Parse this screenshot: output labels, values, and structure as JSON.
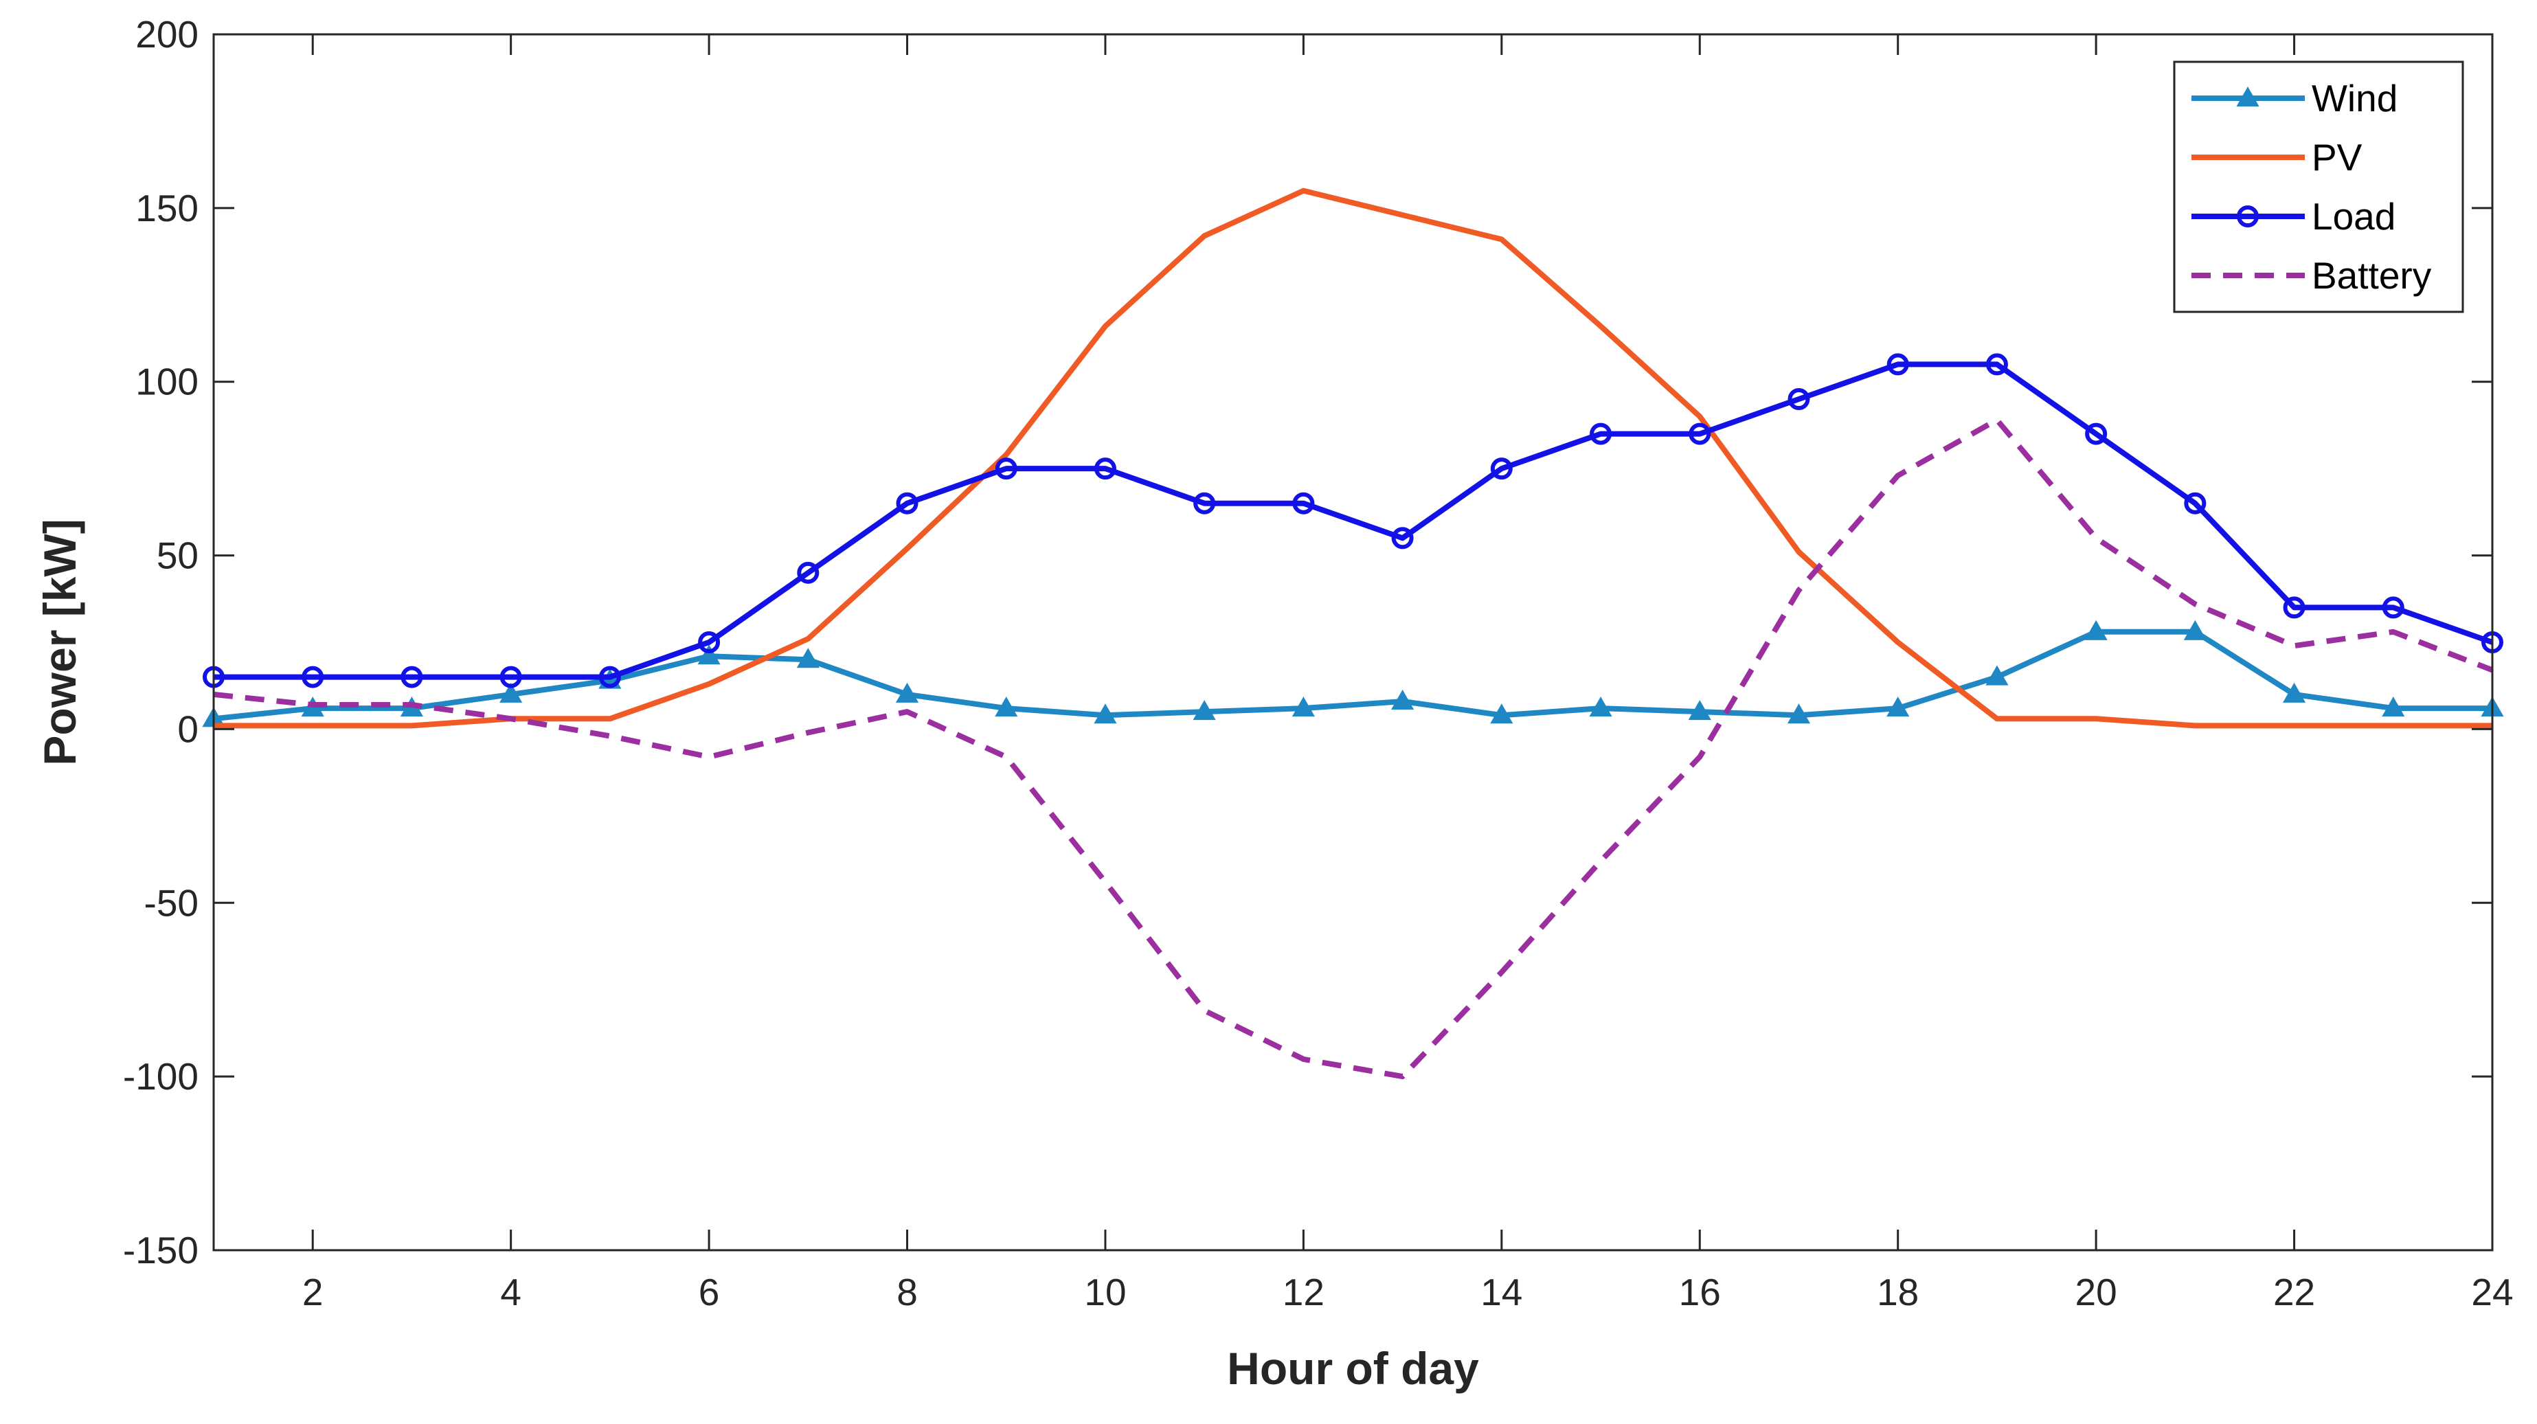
{
  "chart_data": {
    "type": "line",
    "title": "",
    "xlabel": "Hour of day",
    "ylabel": "Power [kW]",
    "xlim": [
      1,
      24
    ],
    "ylim": [
      -150,
      200
    ],
    "xticks": [
      2,
      4,
      6,
      8,
      10,
      12,
      14,
      16,
      18,
      20,
      22,
      24
    ],
    "yticks": [
      -150,
      -100,
      -50,
      0,
      50,
      100,
      150,
      200
    ],
    "grid": false,
    "legend_position": "top-right",
    "x": [
      1,
      2,
      3,
      4,
      5,
      6,
      7,
      8,
      9,
      10,
      11,
      12,
      13,
      14,
      15,
      16,
      17,
      18,
      19,
      20,
      21,
      22,
      23,
      24
    ],
    "series": [
      {
        "name": "Wind",
        "color": "#1f88c4",
        "dash": "solid",
        "marker": "triangle",
        "values": [
          3,
          6,
          6,
          10,
          14,
          21,
          20,
          10,
          6,
          4,
          5,
          6,
          8,
          4,
          6,
          5,
          4,
          6,
          15,
          28,
          28,
          10,
          6,
          6
        ]
      },
      {
        "name": "PV",
        "color": "#f05a24",
        "dash": "solid",
        "marker": "none",
        "values": [
          1,
          1,
          1,
          3,
          3,
          13,
          26,
          52,
          79,
          116,
          142,
          155,
          148,
          141,
          116,
          90,
          51,
          25,
          3,
          3,
          1,
          1,
          1,
          1
        ]
      },
      {
        "name": "Load",
        "color": "#1212e6",
        "dash": "solid",
        "marker": "circle",
        "values": [
          15,
          15,
          15,
          15,
          15,
          25,
          45,
          65,
          75,
          75,
          65,
          65,
          55,
          75,
          85,
          85,
          95,
          105,
          105,
          85,
          65,
          35,
          35,
          25
        ]
      },
      {
        "name": "Battery",
        "color": "#9b2fa0",
        "dash": "dashed",
        "marker": "none",
        "values": [
          10,
          7,
          7,
          3,
          -2,
          -8,
          -1,
          5,
          -8,
          -44,
          -81,
          -95,
          -100,
          -70,
          -38,
          -8,
          40,
          73,
          89,
          55,
          36,
          24,
          28,
          17
        ]
      }
    ]
  }
}
